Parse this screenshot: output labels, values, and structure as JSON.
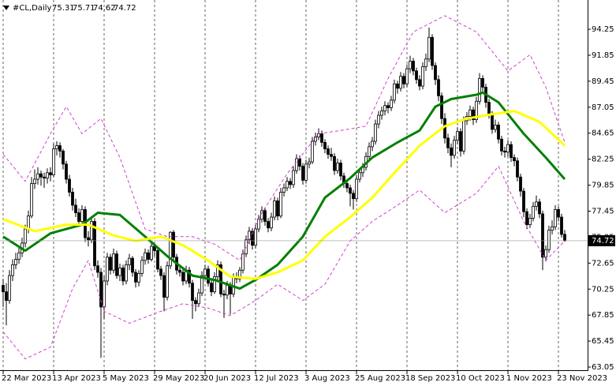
{
  "chart_data": {
    "type": "candlestick",
    "symbol": "#CL,Daily",
    "ylim": [
      62.76,
      96.95
    ],
    "yticks": [
      94.25,
      91.85,
      89.45,
      87.05,
      84.65,
      82.25,
      79.85,
      77.45,
      75.05,
      72.65,
      70.25,
      67.85,
      65.45,
      63.05
    ],
    "xlim": [
      -1,
      185
    ],
    "xticks": [
      {
        "value": 0,
        "label": "22 Mar 2023"
      },
      {
        "value": 16,
        "label": "13 Apr 2023"
      },
      {
        "value": 32,
        "label": "5 May 2023"
      },
      {
        "value": 48,
        "label": "29 May 2023"
      },
      {
        "value": 64,
        "label": "20 Jun 2023"
      },
      {
        "value": 80,
        "label": "12 Jul 2023"
      },
      {
        "value": 96,
        "label": "3 Aug 2023"
      },
      {
        "value": 112,
        "label": "25 Aug 2023"
      },
      {
        "value": 128,
        "label": "18 Sep 2023"
      },
      {
        "value": 144,
        "label": "10 Oct 2023"
      },
      {
        "value": 160,
        "label": "1 Nov 2023"
      },
      {
        "value": 176,
        "label": "23 Nov 2023"
      }
    ],
    "grid": true,
    "up_color": "#ffffff",
    "down_color": "#000000",
    "wick_color": "#000000",
    "candles": [
      [
        70.6,
        71.2,
        68.6,
        70.0
      ],
      [
        70.0,
        70.8,
        66.9,
        69.2
      ],
      [
        69.2,
        72.0,
        68.9,
        71.5
      ],
      [
        71.5,
        73.0,
        71.0,
        72.5
      ],
      [
        72.5,
        73.6,
        72.1,
        73.0
      ],
      [
        73.0,
        74.2,
        72.6,
        73.6
      ],
      [
        73.6,
        75.0,
        73.2,
        74.5
      ],
      [
        74.5,
        76.2,
        74.1,
        75.8
      ],
      [
        75.8,
        77.5,
        75.4,
        77.0
      ],
      [
        77.0,
        80.6,
        76.8,
        80.0
      ],
      [
        80.0,
        81.3,
        79.5,
        80.4
      ],
      [
        80.4,
        81.5,
        79.9,
        80.9
      ],
      [
        80.9,
        81.2,
        79.8,
        80.6
      ],
      [
        80.6,
        81.0,
        79.6,
        80.5
      ],
      [
        80.5,
        81.4,
        80.0,
        81.0
      ],
      [
        81.0,
        81.5,
        80.2,
        80.8
      ],
      [
        80.8,
        83.7,
        80.6,
        83.2
      ],
      [
        83.2,
        83.9,
        82.6,
        83.5
      ],
      [
        83.5,
        83.8,
        82.4,
        83.0
      ],
      [
        83.0,
        83.2,
        81.3,
        81.8
      ],
      [
        81.8,
        82.1,
        80.0,
        80.4
      ],
      [
        80.4,
        80.8,
        78.8,
        79.2
      ],
      [
        79.2,
        79.6,
        77.5,
        78.0
      ],
      [
        78.0,
        78.6,
        76.9,
        77.3
      ],
      [
        77.3,
        77.7,
        76.0,
        76.5
      ],
      [
        76.5,
        78.0,
        76.2,
        77.6
      ],
      [
        77.6,
        77.9,
        74.6,
        75.0
      ],
      [
        75.0,
        75.6,
        74.2,
        74.8
      ],
      [
        74.8,
        77.0,
        74.5,
        76.5
      ],
      [
        76.5,
        76.8,
        72.0,
        72.4
      ],
      [
        72.4,
        72.9,
        71.3,
        71.8
      ],
      [
        71.8,
        72.2,
        63.9,
        68.6
      ],
      [
        68.6,
        71.5,
        67.5,
        71.0
      ],
      [
        71.0,
        73.6,
        70.6,
        73.2
      ],
      [
        73.2,
        73.5,
        71.6,
        72.0
      ],
      [
        72.0,
        74.0,
        71.7,
        73.5
      ],
      [
        73.5,
        73.8,
        71.2,
        71.5
      ],
      [
        71.5,
        72.6,
        71.0,
        72.2
      ],
      [
        72.2,
        72.5,
        70.6,
        71.0
      ],
      [
        71.0,
        72.9,
        70.7,
        72.5
      ],
      [
        72.5,
        73.5,
        72.0,
        73.1
      ],
      [
        73.1,
        73.3,
        71.4,
        71.8
      ],
      [
        71.8,
        72.1,
        70.4,
        70.9
      ],
      [
        70.9,
        72.0,
        70.5,
        71.7
      ],
      [
        71.7,
        73.3,
        71.4,
        72.9
      ],
      [
        72.9,
        74.0,
        72.5,
        73.6
      ],
      [
        73.6,
        73.9,
        72.6,
        73.0
      ],
      [
        73.0,
        74.6,
        72.8,
        74.2
      ],
      [
        74.2,
        74.5,
        73.3,
        73.8
      ],
      [
        73.8,
        74.0,
        71.8,
        72.1
      ],
      [
        72.1,
        72.4,
        71.1,
        71.5
      ],
      [
        71.5,
        71.8,
        68.2,
        69.5
      ],
      [
        69.5,
        72.8,
        69.2,
        72.4
      ],
      [
        72.4,
        75.6,
        72.1,
        75.5
      ],
      [
        75.5,
        75.7,
        72.9,
        73.2
      ],
      [
        73.2,
        73.5,
        71.6,
        72.0
      ],
      [
        72.0,
        72.4,
        71.4,
        71.8
      ],
      [
        71.8,
        72.2,
        70.6,
        71.0
      ],
      [
        71.0,
        72.4,
        70.7,
        72.0
      ],
      [
        72.0,
        72.3,
        70.4,
        70.8
      ],
      [
        70.8,
        71.1,
        67.5,
        69.2
      ],
      [
        69.2,
        69.5,
        68.2,
        68.9
      ],
      [
        68.9,
        70.3,
        68.6,
        69.9
      ],
      [
        69.9,
        71.9,
        69.6,
        71.5
      ],
      [
        71.5,
        72.5,
        71.1,
        72.1
      ],
      [
        72.1,
        72.4,
        70.5,
        70.8
      ],
      [
        70.8,
        71.1,
        69.6,
        70.0
      ],
      [
        70.0,
        71.8,
        69.8,
        71.4
      ],
      [
        71.4,
        72.9,
        71.1,
        72.5
      ],
      [
        72.5,
        72.8,
        69.5,
        69.8
      ],
      [
        69.8,
        70.2,
        67.6,
        69.7
      ],
      [
        69.7,
        71.0,
        69.3,
        70.6
      ],
      [
        70.6,
        70.9,
        67.9,
        69.8
      ],
      [
        69.8,
        71.7,
        69.5,
        71.4
      ],
      [
        71.4,
        71.8,
        70.8,
        71.2
      ],
      [
        71.2,
        72.3,
        70.9,
        72.0
      ],
      [
        72.0,
        73.9,
        71.7,
        73.5
      ],
      [
        73.5,
        75.2,
        73.2,
        74.8
      ],
      [
        74.8,
        76.0,
        74.4,
        75.6
      ],
      [
        75.6,
        75.9,
        73.9,
        74.3
      ],
      [
        74.3,
        76.2,
        74.0,
        75.8
      ],
      [
        75.8,
        77.1,
        75.5,
        76.7
      ],
      [
        76.7,
        77.9,
        76.4,
        77.5
      ],
      [
        77.5,
        77.8,
        76.1,
        76.5
      ],
      [
        76.5,
        76.8,
        75.5,
        75.9
      ],
      [
        75.9,
        77.3,
        75.6,
        76.9
      ],
      [
        76.9,
        78.8,
        76.6,
        78.4
      ],
      [
        78.4,
        78.7,
        76.6,
        77.0
      ],
      [
        77.0,
        79.6,
        76.8,
        79.2
      ],
      [
        79.2,
        80.0,
        78.8,
        79.6
      ],
      [
        79.6,
        80.6,
        79.3,
        80.2
      ],
      [
        80.2,
        80.5,
        79.5,
        79.9
      ],
      [
        79.9,
        81.6,
        79.6,
        81.2
      ],
      [
        81.2,
        82.7,
        80.9,
        82.3
      ],
      [
        82.3,
        82.6,
        81.2,
        81.6
      ],
      [
        81.6,
        81.9,
        79.9,
        80.3
      ],
      [
        80.3,
        82.2,
        80.0,
        81.8
      ],
      [
        81.8,
        82.4,
        81.4,
        82.0
      ],
      [
        82.0,
        84.3,
        81.8,
        83.9
      ],
      [
        83.9,
        84.7,
        83.5,
        84.3
      ],
      [
        84.3,
        85.1,
        84.0,
        84.6
      ],
      [
        84.6,
        84.9,
        83.4,
        83.8
      ],
      [
        83.8,
        84.1,
        82.8,
        83.2
      ],
      [
        83.2,
        83.5,
        82.3,
        82.7
      ],
      [
        82.7,
        83.3,
        82.1,
        82.5
      ],
      [
        82.5,
        82.8,
        80.8,
        81.2
      ],
      [
        81.2,
        82.3,
        80.9,
        81.9
      ],
      [
        81.9,
        82.2,
        80.3,
        80.7
      ],
      [
        80.7,
        81.0,
        79.6,
        80.0
      ],
      [
        80.0,
        80.4,
        79.2,
        79.6
      ],
      [
        79.6,
        79.9,
        77.9,
        79.1
      ],
      [
        79.1,
        79.4,
        77.6,
        78.6
      ],
      [
        78.6,
        80.8,
        78.3,
        80.4
      ],
      [
        80.4,
        81.4,
        80.1,
        81.0
      ],
      [
        81.0,
        81.9,
        80.6,
        81.5
      ],
      [
        81.5,
        82.9,
        81.2,
        82.5
      ],
      [
        82.5,
        83.8,
        82.2,
        83.4
      ],
      [
        83.4,
        84.3,
        83.0,
        83.9
      ],
      [
        83.9,
        85.9,
        83.6,
        85.5
      ],
      [
        85.5,
        86.7,
        85.1,
        86.3
      ],
      [
        86.3,
        87.1,
        85.9,
        86.7
      ],
      [
        86.7,
        87.6,
        86.3,
        87.2
      ],
      [
        87.2,
        87.5,
        86.5,
        87.0
      ],
      [
        87.0,
        88.1,
        86.7,
        87.7
      ],
      [
        87.7,
        89.6,
        87.4,
        89.2
      ],
      [
        89.2,
        89.5,
        88.3,
        88.8
      ],
      [
        88.8,
        90.3,
        88.5,
        89.9
      ],
      [
        89.9,
        90.2,
        88.8,
        89.2
      ],
      [
        89.2,
        91.0,
        88.9,
        90.6
      ],
      [
        90.6,
        91.8,
        90.2,
        91.3
      ],
      [
        91.3,
        91.6,
        90.0,
        90.4
      ],
      [
        90.4,
        90.7,
        89.2,
        89.6
      ],
      [
        89.6,
        90.0,
        88.6,
        89.0
      ],
      [
        89.0,
        91.2,
        88.7,
        90.8
      ],
      [
        90.8,
        92.0,
        90.4,
        91.5
      ],
      [
        91.5,
        94.4,
        91.2,
        93.5
      ],
      [
        93.5,
        93.8,
        90.5,
        90.9
      ],
      [
        90.9,
        91.2,
        89.1,
        89.6
      ],
      [
        89.6,
        90.0,
        87.6,
        88.1
      ],
      [
        88.1,
        88.4,
        85.5,
        86.0
      ],
      [
        86.0,
        86.5,
        83.7,
        84.2
      ],
      [
        84.2,
        84.6,
        82.8,
        83.3
      ],
      [
        83.3,
        83.7,
        81.5,
        82.6
      ],
      [
        82.6,
        84.4,
        82.3,
        84.0
      ],
      [
        84.0,
        85.2,
        83.6,
        84.8
      ],
      [
        84.8,
        85.1,
        82.5,
        83.0
      ],
      [
        83.0,
        86.2,
        82.7,
        85.8
      ],
      [
        85.8,
        86.6,
        85.4,
        86.2
      ],
      [
        86.2,
        87.2,
        85.8,
        86.8
      ],
      [
        86.8,
        87.1,
        85.4,
        85.9
      ],
      [
        85.9,
        88.0,
        85.6,
        87.6
      ],
      [
        87.6,
        90.2,
        87.3,
        89.7
      ],
      [
        89.7,
        90.0,
        88.5,
        88.9
      ],
      [
        88.9,
        89.2,
        87.0,
        87.5
      ],
      [
        87.5,
        87.8,
        86.0,
        86.4
      ],
      [
        86.4,
        86.7,
        84.6,
        85.0
      ],
      [
        85.0,
        85.9,
        84.7,
        85.4
      ],
      [
        85.4,
        85.7,
        83.7,
        84.1
      ],
      [
        84.1,
        84.4,
        82.6,
        83.0
      ],
      [
        83.0,
        83.4,
        82.4,
        82.9
      ],
      [
        82.9,
        84.0,
        82.5,
        83.6
      ],
      [
        83.6,
        83.9,
        82.0,
        82.4
      ],
      [
        82.4,
        82.7,
        81.6,
        82.1
      ],
      [
        82.1,
        82.4,
        80.2,
        80.6
      ],
      [
        80.6,
        80.9,
        78.8,
        79.3
      ],
      [
        79.3,
        79.6,
        76.9,
        77.4
      ],
      [
        77.4,
        77.7,
        75.8,
        76.2
      ],
      [
        76.2,
        77.2,
        75.9,
        76.8
      ],
      [
        76.8,
        78.3,
        76.5,
        77.9
      ],
      [
        77.9,
        78.9,
        77.5,
        78.3
      ],
      [
        78.3,
        78.6,
        76.8,
        77.2
      ],
      [
        77.2,
        77.5,
        72.0,
        73.2
      ],
      [
        73.2,
        74.3,
        72.8,
        73.9
      ],
      [
        73.9,
        76.1,
        73.6,
        75.7
      ],
      [
        75.7,
        76.6,
        75.3,
        76.0
      ],
      [
        76.0,
        78.0,
        75.7,
        77.6
      ],
      [
        77.6,
        77.9,
        76.5,
        76.9
      ],
      [
        76.9,
        77.2,
        75.0,
        75.3
      ],
      [
        75.31,
        75.71,
        74.62,
        74.72
      ]
    ],
    "lines": [
      {
        "color": "#008000",
        "width": 3,
        "dashed": false,
        "x": [
          0,
          7,
          15,
          25,
          30,
          37,
          45,
          52,
          60,
          67,
          75,
          80,
          87,
          95,
          102,
          110,
          117,
          125,
          132,
          137,
          142,
          150,
          152,
          157,
          165,
          172,
          178
        ],
        "values": [
          75.1,
          73.8,
          75.4,
          76.2,
          77.3,
          77.1,
          75.1,
          73.3,
          71.5,
          71.1,
          70.3,
          71.1,
          72.5,
          75.1,
          78.7,
          80.5,
          82.4,
          83.8,
          84.9,
          87.1,
          87.8,
          88.2,
          88.4,
          87.5,
          84.6,
          82.4,
          80.4
        ]
      },
      {
        "color": "#ffff00",
        "width": 3,
        "dashed": false,
        "x": [
          0,
          10,
          20,
          27,
          35,
          42,
          50,
          57,
          65,
          72,
          80,
          87,
          95,
          102,
          110,
          117,
          125,
          132,
          140,
          147,
          155,
          162,
          170,
          178
        ],
        "values": [
          76.7,
          75.6,
          76.2,
          76.2,
          75.2,
          74.7,
          75.1,
          74.3,
          72.9,
          71.4,
          71.2,
          71.8,
          72.9,
          75.1,
          76.9,
          78.7,
          81.3,
          83.5,
          85.3,
          86.0,
          86.4,
          86.7,
          85.7,
          83.5
        ]
      },
      {
        "color": "#cc44cc",
        "width": 1,
        "dashed": true,
        "x": [
          0,
          7,
          15,
          20,
          25,
          31,
          37,
          45,
          52,
          60,
          67,
          75,
          82,
          90,
          100,
          107,
          115,
          122,
          130,
          140,
          150,
          160,
          167,
          172,
          178
        ],
        "values": [
          82.7,
          80.2,
          84.6,
          87.1,
          84.6,
          86.0,
          82.4,
          75.8,
          75.1,
          75.1,
          74.4,
          72.9,
          77.3,
          80.9,
          84.6,
          84.9,
          85.3,
          89.7,
          94.0,
          95.5,
          94.0,
          90.4,
          91.9,
          88.9,
          83.8
        ]
      },
      {
        "color": "#cc44cc",
        "width": 1,
        "dashed": true,
        "x": [
          0,
          7,
          15,
          22,
          27,
          32,
          40,
          50,
          57,
          65,
          72,
          80,
          87,
          95,
          102,
          110,
          117,
          125,
          132,
          140,
          150,
          157,
          165,
          172,
          178
        ],
        "values": [
          66.3,
          63.8,
          64.9,
          70.3,
          72.9,
          68.2,
          67.1,
          68.2,
          68.9,
          68.5,
          67.8,
          69.2,
          70.7,
          69.2,
          70.7,
          74.7,
          76.5,
          78.0,
          79.4,
          77.3,
          79.1,
          81.6,
          76.5,
          72.9,
          74.7
        ]
      }
    ]
  }
}
